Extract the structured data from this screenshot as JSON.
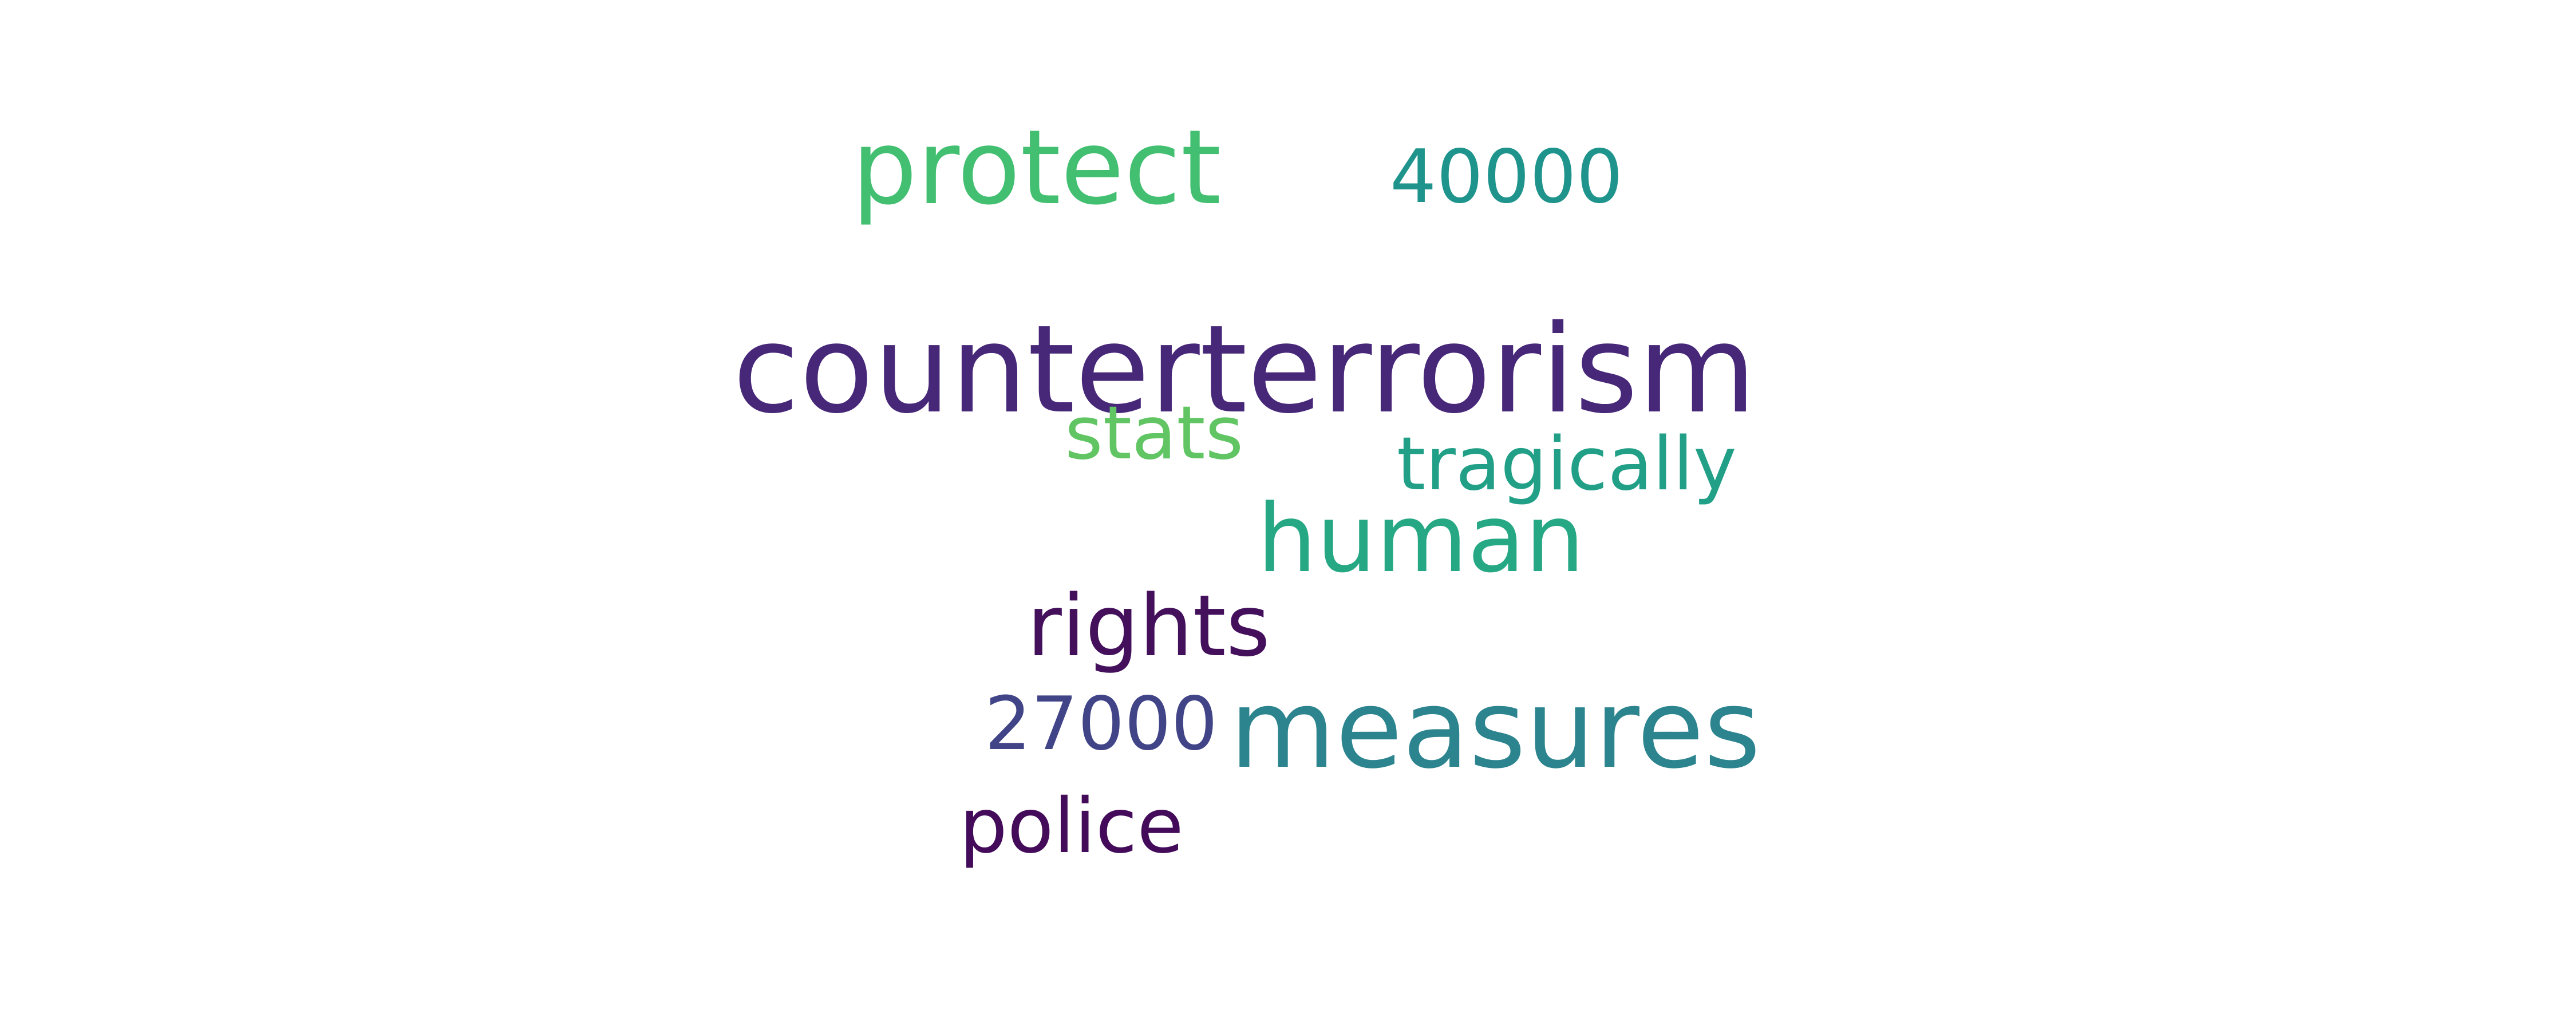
{
  "words": [
    {
      "key": "counterterrorism",
      "text": "counterterrorism",
      "color": "#472778"
    },
    {
      "key": "protect",
      "text": "protect",
      "color": "#43bf71"
    },
    {
      "key": "40000",
      "text": "40000",
      "color": "#1f948c"
    },
    {
      "key": "stats",
      "text": "stats",
      "color": "#60c562"
    },
    {
      "key": "tragically",
      "text": "tragically",
      "color": "#21a087"
    },
    {
      "key": "human",
      "text": "human",
      "color": "#26a884"
    },
    {
      "key": "rights",
      "text": "rights",
      "color": "#440f5b"
    },
    {
      "key": "27000",
      "text": "27000",
      "color": "#414487"
    },
    {
      "key": "measures",
      "text": "measures",
      "color": "#2c848e"
    },
    {
      "key": "police",
      "text": "police",
      "color": "#430b59"
    }
  ]
}
